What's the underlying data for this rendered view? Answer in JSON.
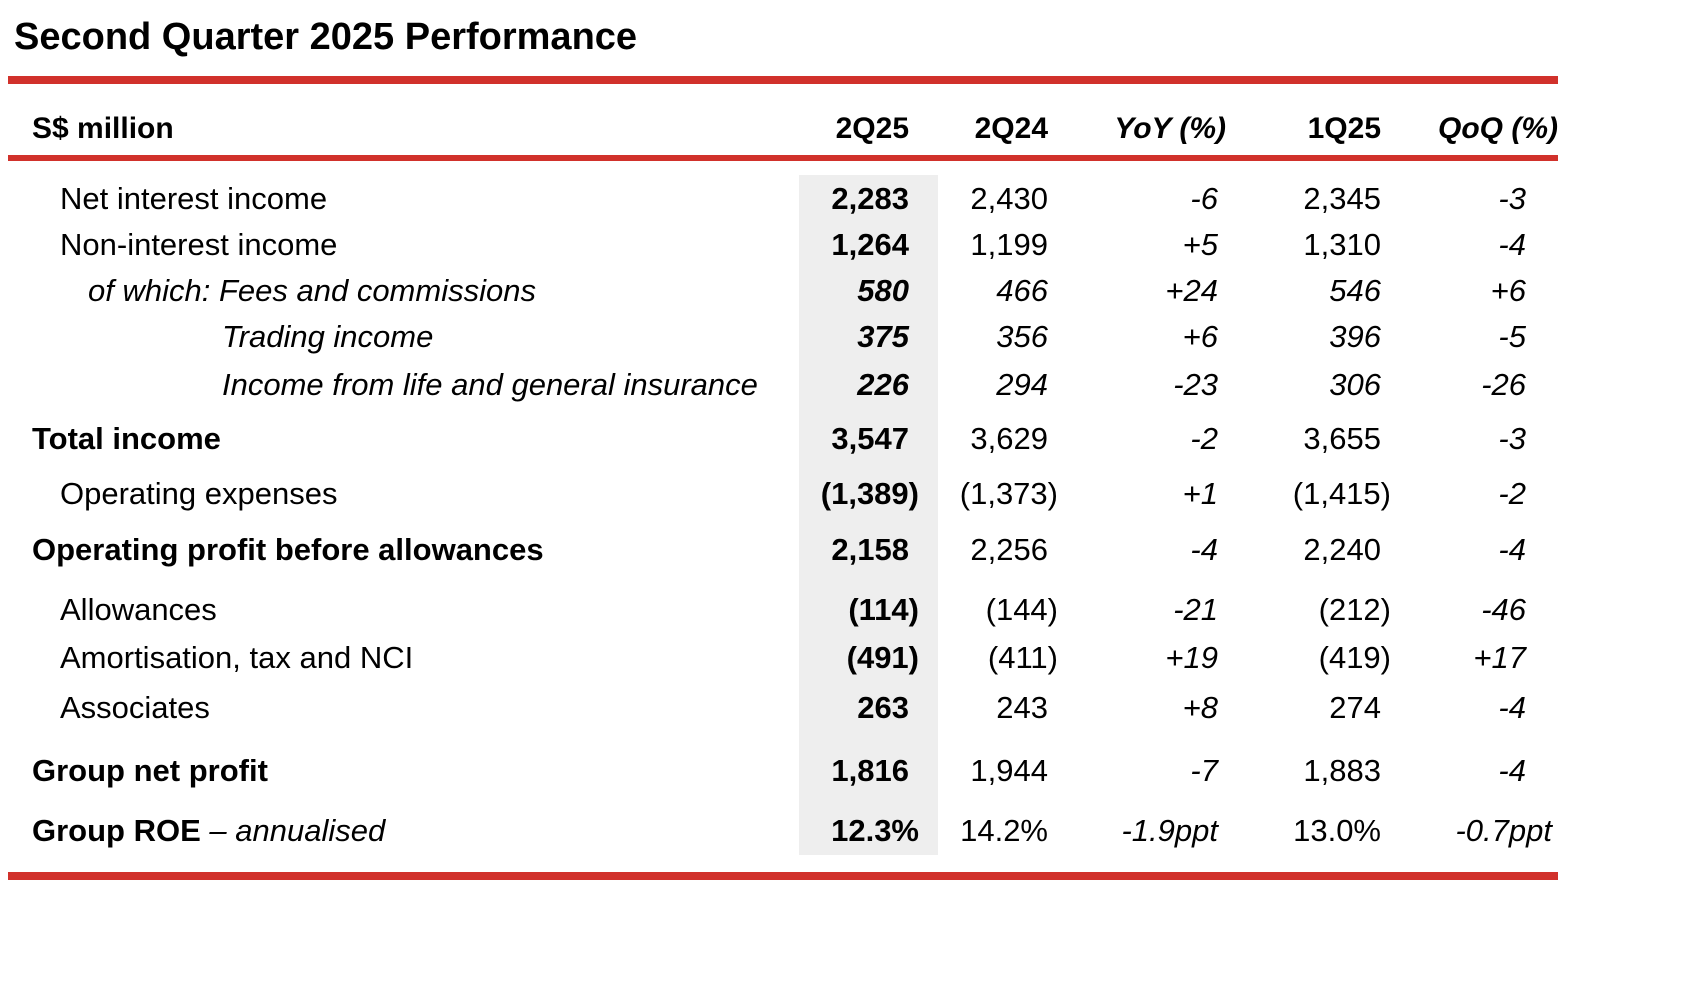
{
  "title": "Second Quarter 2025 Performance",
  "colors": {
    "accent_red": "#d1312b",
    "highlight_gray": "#eeeeee"
  },
  "table": {
    "header": {
      "label": "S$ million",
      "col1": "2Q25",
      "col2": "2Q24",
      "col3": "YoY (%)",
      "col4": "1Q25",
      "col5": "QoQ (%)"
    },
    "rows": [
      {
        "label": "Net interest income",
        "label_suffix": "",
        "v1": "2,283",
        "v2": "2,430",
        "v3": "-6",
        "v4": "2,345",
        "v5": "-3"
      },
      {
        "label": "Non-interest income",
        "label_suffix": "",
        "v1": "1,264",
        "v2": "1,199",
        "v3": "+5",
        "v4": "1,310",
        "v5": "-4"
      },
      {
        "label": "of which: Fees and commissions",
        "label_suffix": "",
        "v1": "580",
        "v2": "466",
        "v3": "+24",
        "v4": "546",
        "v5": "+6"
      },
      {
        "label": "Trading income",
        "label_suffix": "",
        "v1": "375",
        "v2": "356",
        "v3": "+6",
        "v4": "396",
        "v5": "-5"
      },
      {
        "label": "Income from life and general insurance",
        "label_suffix": "",
        "v1": "226",
        "v2": "294",
        "v3": "-23",
        "v4": "306",
        "v5": "-26"
      },
      {
        "label": "Total income",
        "label_suffix": "",
        "v1": "3,547",
        "v2": "3,629",
        "v3": "-2",
        "v4": "3,655",
        "v5": "-3"
      },
      {
        "label": "Operating expenses",
        "label_suffix": "",
        "v1": "(1,389)",
        "v2": "(1,373)",
        "v3": "+1",
        "v4": "(1,415)",
        "v5": "-2"
      },
      {
        "label": "Operating profit before allowances",
        "label_suffix": "",
        "v1": "2,158",
        "v2": "2,256",
        "v3": "-4",
        "v4": "2,240",
        "v5": "-4"
      },
      {
        "label": "Allowances",
        "label_suffix": "",
        "v1": "(114)",
        "v2": "(144)",
        "v3": "-21",
        "v4": "(212)",
        "v5": "-46"
      },
      {
        "label": "Amortisation, tax and NCI",
        "label_suffix": "",
        "v1": "(491)",
        "v2": "(411)",
        "v3": "+19",
        "v4": "(419)",
        "v5": "+17"
      },
      {
        "label": "Associates",
        "label_suffix": "",
        "v1": "263",
        "v2": "243",
        "v3": "+8",
        "v4": "274",
        "v5": "-4"
      },
      {
        "label": "Group net profit",
        "label_suffix": "",
        "v1": "1,816",
        "v2": "1,944",
        "v3": "-7",
        "v4": "1,883",
        "v5": "-4"
      },
      {
        "label": "Group ROE",
        "label_suffix": " – annualised",
        "v1": "12.3%",
        "v2": "14.2%",
        "v3": "-1.9ppt",
        "v4": "13.0%",
        "v5": "-0.7ppt"
      }
    ]
  }
}
